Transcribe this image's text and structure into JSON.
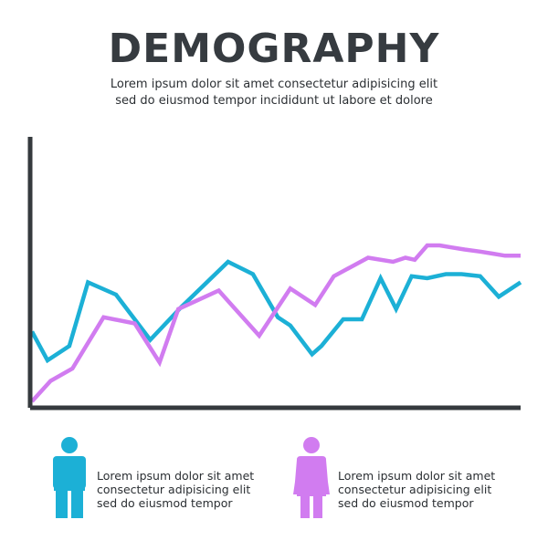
{
  "page": {
    "title": "DEMOGRAPHY",
    "subtitle_lines": [
      "Lorem ipsum dolor sit amet consectetur adipisicing elit",
      "sed do eiusmod tempor incididunt ut labore et dolore"
    ]
  },
  "legend": [
    {
      "icon": "male-person-icon",
      "color": "#1cb0d6",
      "lines": [
        "Lorem ipsum dolor sit amet",
        "consectetur adipisicing elit",
        "sed do eiusmod tempor"
      ]
    },
    {
      "icon": "female-person-icon",
      "color": "#d17cf0",
      "lines": [
        "Lorem ipsum dolor sit amet",
        "consectetur adipisicing elit",
        "sed do eiusmod tempor"
      ]
    }
  ],
  "colors": {
    "axis": "#353a3e",
    "series_1": "#1cb0d6",
    "series_2": "#d17cf0"
  },
  "chart_data": {
    "type": "line",
    "title": "",
    "xlabel": "",
    "ylabel": "",
    "grid": false,
    "ylim": [
      0,
      100
    ],
    "series": [
      {
        "color": "#1cb0d6",
        "x": [
          0,
          5,
          12,
          18,
          27,
          38,
          48,
          63,
          71,
          79,
          83,
          90,
          93,
          100,
          106,
          112,
          117,
          122,
          127,
          133,
          138,
          144,
          150,
          157
        ],
        "values": [
          34,
          20,
          27,
          58,
          52,
          30,
          46,
          68,
          62,
          41,
          37,
          23,
          27,
          40,
          40,
          60,
          45,
          61,
          60,
          62,
          62,
          61,
          51,
          58
        ]
      },
      {
        "color": "#d17cf0",
        "x": [
          0,
          6,
          13,
          23,
          33,
          41,
          47,
          60,
          73,
          83,
          91,
          97,
          108,
          116,
          120,
          123,
          127,
          131,
          135,
          139,
          144,
          148,
          152,
          157
        ],
        "values": [
          0,
          10,
          16,
          41,
          38,
          19,
          45,
          54,
          32,
          55,
          47,
          61,
          70,
          68,
          70,
          69,
          76,
          76,
          75,
          74,
          73,
          72,
          71,
          71
        ]
      }
    ]
  }
}
